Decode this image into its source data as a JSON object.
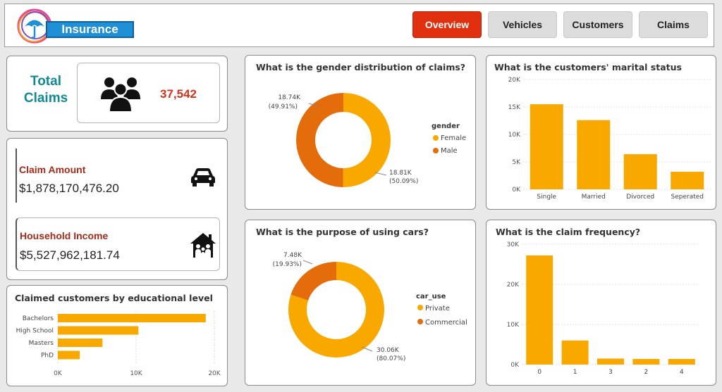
{
  "header": {
    "logo_text": "Insurance",
    "nav": [
      "Overview",
      "Vehicles",
      "Customers",
      "Claims"
    ],
    "active_nav": "Overview"
  },
  "colors": {
    "accent": "#f9a800",
    "dark_orange": "#e46c0a",
    "nav_active": "#e0300f",
    "teal": "#0f8b92",
    "label_red": "#a52a1a"
  },
  "kpi": {
    "total_claims_label": "Total Claims",
    "total_claims_value": "37,542",
    "total_claims_icon": "people-icon",
    "claim_amount_label": "Claim Amount",
    "claim_amount_value": "$1,878,170,476.20",
    "claim_amount_icon": "car-icon",
    "household_income_label": "Household Income",
    "household_income_value": "$5,527,962,181.74",
    "household_income_icon": "house-family-icon"
  },
  "chart_data": [
    {
      "id": "education",
      "type": "bar",
      "orientation": "horizontal",
      "title": "Claimed customers by educational level",
      "categories": [
        "Bachelors",
        "High School",
        "Masters",
        "PhD"
      ],
      "values": [
        18900,
        10300,
        5700,
        2800
      ],
      "xlim": [
        0,
        20000
      ],
      "ticks": [
        "0K",
        "10K",
        "20K"
      ]
    },
    {
      "id": "gender",
      "type": "pie",
      "donut": true,
      "title": "What is the gender distribution of claims?",
      "legend_title": "gender",
      "legend_position": "right",
      "slices": [
        {
          "name": "Female",
          "value": 18810,
          "label": "18.81K",
          "pct": "(50.09%)"
        },
        {
          "name": "Male",
          "value": 18740,
          "label": "18.74K",
          "pct": "(49.91%)"
        }
      ]
    },
    {
      "id": "car_use",
      "type": "pie",
      "donut": true,
      "title": "What is the purpose of using cars?",
      "legend_title": "car_use",
      "legend_position": "right",
      "slices": [
        {
          "name": "Private",
          "value": 30060,
          "label": "30.06K",
          "pct": "(80.07%)"
        },
        {
          "name": "Commercial",
          "value": 7480,
          "label": "7.48K",
          "pct": "(19.93%)"
        }
      ]
    },
    {
      "id": "marital",
      "type": "bar",
      "title": "What is the customers' marital status",
      "categories": [
        "Single",
        "Married",
        "Divorced",
        "Seperated"
      ],
      "values": [
        15500,
        12600,
        6400,
        3200
      ],
      "ylim": [
        0,
        20000
      ],
      "ticks": [
        "0K",
        "5K",
        "10K",
        "15K",
        "20K"
      ]
    },
    {
      "id": "frequency",
      "type": "bar",
      "title": "What is the claim frequency?",
      "categories": [
        "0",
        "1",
        "3",
        "2",
        "4"
      ],
      "values": [
        27200,
        6000,
        1500,
        1400,
        1400
      ],
      "ylim": [
        0,
        30000
      ],
      "ticks": [
        "0K",
        "10K",
        "20K",
        "30K"
      ]
    }
  ]
}
